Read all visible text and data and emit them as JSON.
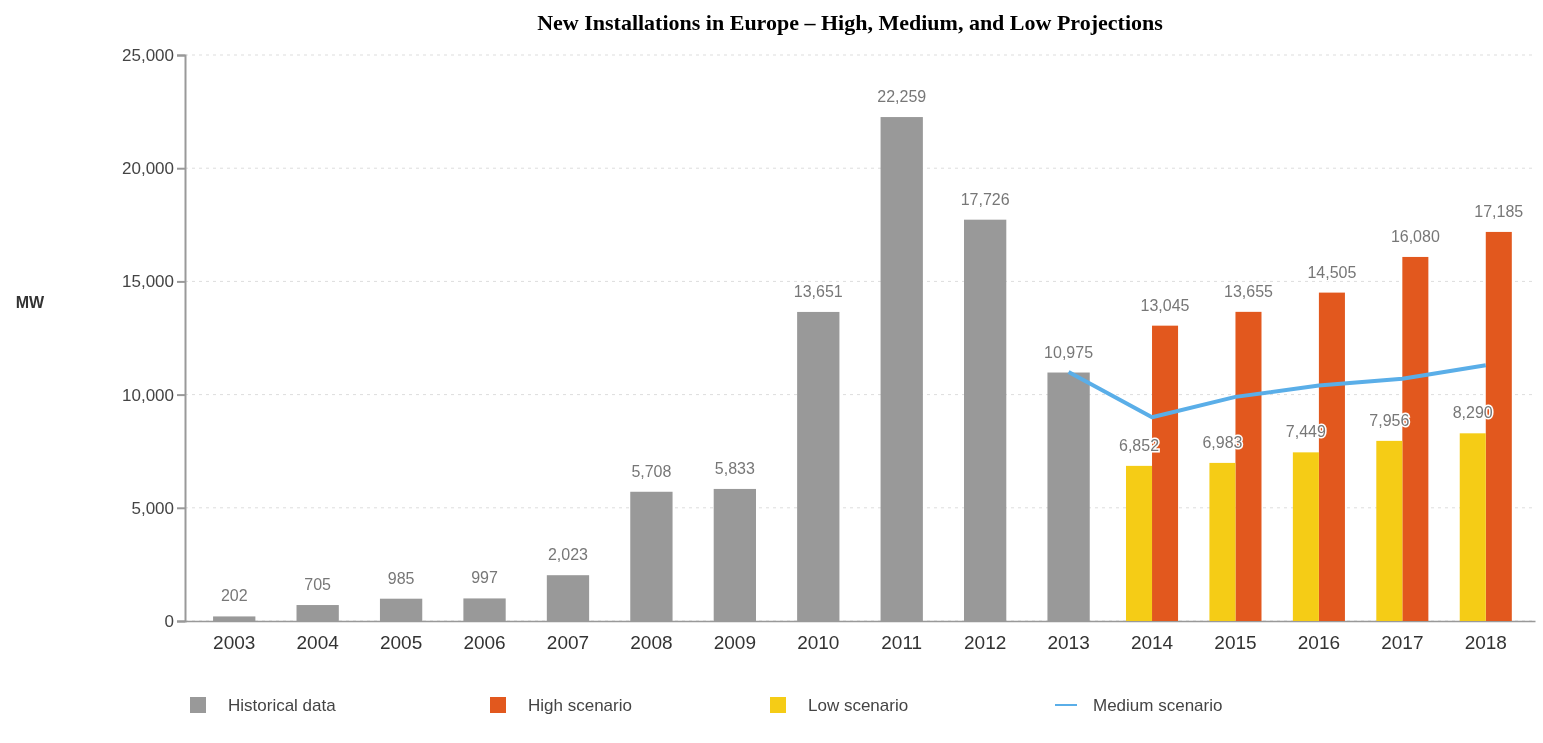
{
  "chart_data": {
    "type": "bar",
    "title": "New Installations in Europe – High, Medium, and Low Projections",
    "ylabel": "MW",
    "categories": [
      "2003",
      "2004",
      "2005",
      "2006",
      "2007",
      "2008",
      "2009",
      "2010",
      "2011",
      "2012",
      "2013",
      "2014",
      "2015",
      "2016",
      "2017",
      "2018"
    ],
    "series": [
      {
        "name": "Historical data",
        "color": "#999999",
        "values": [
          202,
          705,
          985,
          997,
          2023,
          5708,
          5833,
          13651,
          22259,
          17726,
          10975,
          null,
          null,
          null,
          null,
          null
        ],
        "value_labels": [
          "202",
          "705",
          "985",
          "997",
          "2,023",
          "5,708",
          "5,833",
          "13,651",
          "22,259",
          "17,726",
          "10,975",
          null,
          null,
          null,
          null,
          null
        ]
      },
      {
        "name": "High scenario",
        "color": "#e2581e",
        "values": [
          null,
          null,
          null,
          null,
          null,
          null,
          null,
          null,
          null,
          null,
          null,
          13045,
          13655,
          14505,
          16080,
          17185
        ],
        "value_labels": [
          null,
          null,
          null,
          null,
          null,
          null,
          null,
          null,
          null,
          null,
          null,
          "13,045",
          "13,655",
          "14,505",
          "16,080",
          "17,185"
        ]
      },
      {
        "name": "Low scenario",
        "color": "#f5cc16",
        "values": [
          null,
          null,
          null,
          null,
          null,
          null,
          null,
          null,
          null,
          null,
          null,
          6852,
          6983,
          7449,
          7956,
          8290
        ],
        "value_labels": [
          null,
          null,
          null,
          null,
          null,
          null,
          null,
          null,
          null,
          null,
          null,
          "6,852",
          "6,983",
          "7,449",
          "7,956",
          "8,290"
        ]
      },
      {
        "name": "Medium scenario",
        "type": "line",
        "color": "#5aaee8",
        "values": [
          null,
          null,
          null,
          null,
          null,
          null,
          null,
          null,
          null,
          null,
          11000,
          9000,
          9900,
          10400,
          10700,
          11300
        ]
      }
    ],
    "ylim": [
      0,
      25000
    ],
    "yticks": [
      {
        "value": 0,
        "label": "0"
      },
      {
        "value": 5000,
        "label": "5,000"
      },
      {
        "value": 10000,
        "label": "10,000"
      },
      {
        "value": 15000,
        "label": "15,000"
      },
      {
        "value": 20000,
        "label": "20,000"
      },
      {
        "value": 25000,
        "label": "25,000"
      }
    ],
    "grid": "y",
    "legend": "bottom",
    "marker": "none"
  }
}
